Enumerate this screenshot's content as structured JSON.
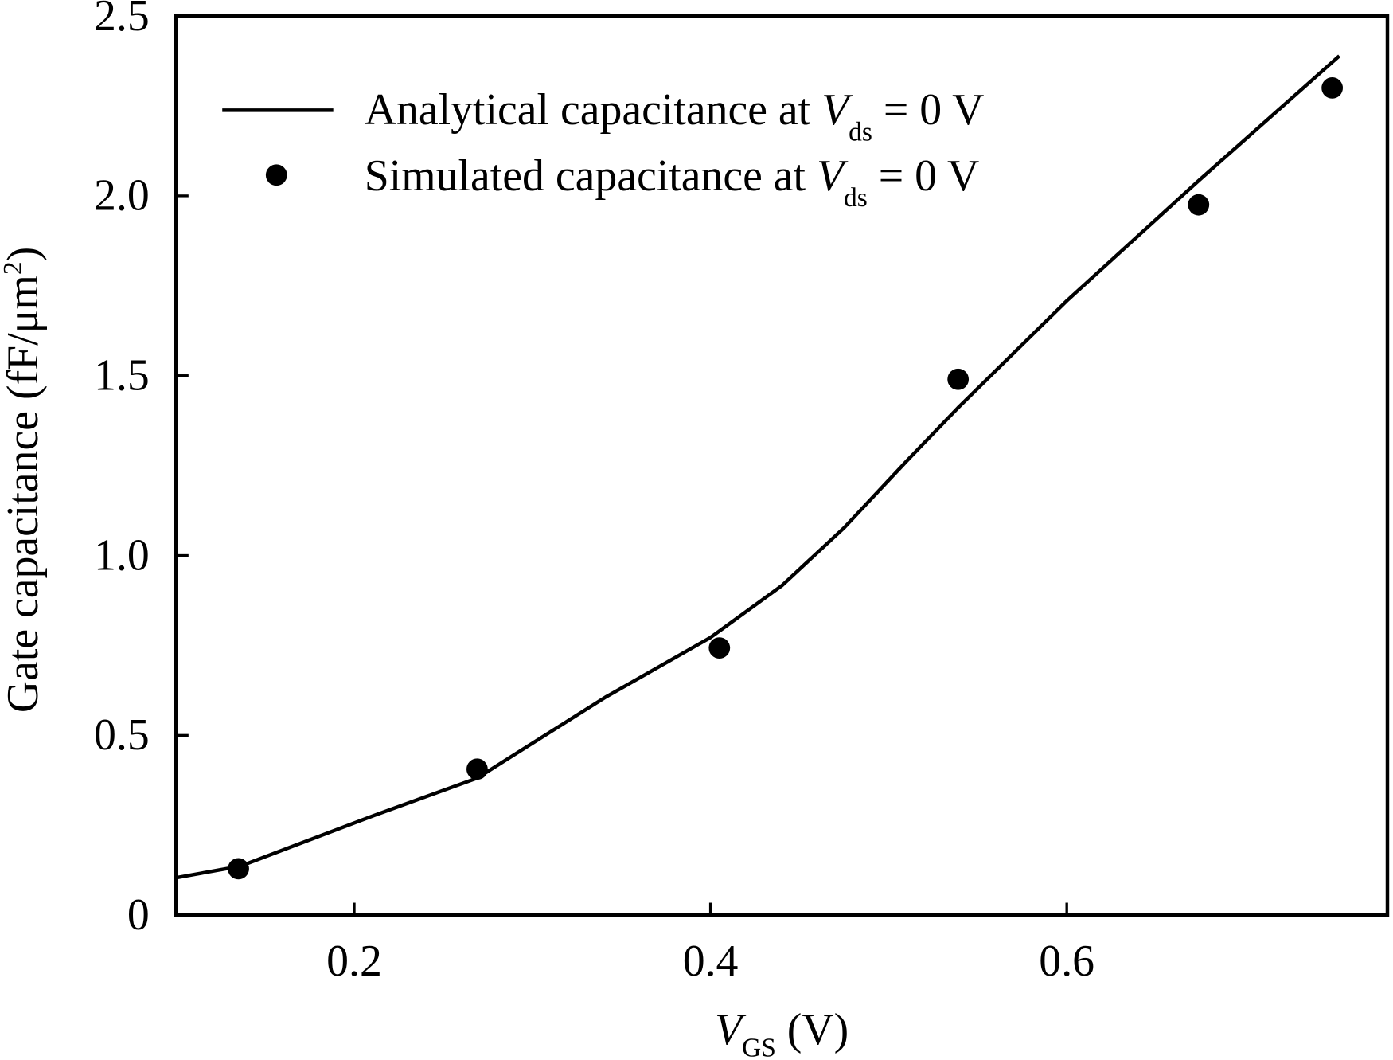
{
  "chart_data": {
    "type": "line",
    "title": "",
    "xlabel": {
      "main": "V",
      "sub": "GS",
      "unit": " (V)"
    },
    "ylabel": "Gate capacitance (fF/μm",
    "ylabel_sup": "2",
    "ylabel_close": ")",
    "xlim": [
      0.1,
      0.78
    ],
    "ylim": [
      0,
      2.5
    ],
    "xticks": [
      0.2,
      0.4,
      0.6
    ],
    "xtick_labels": [
      "0.2",
      "0.4",
      "0.6"
    ],
    "yticks": [
      0,
      0.5,
      1.0,
      1.5,
      2.0,
      2.5
    ],
    "ytick_labels": [
      "0",
      "0.5",
      "1.0",
      "1.5",
      "2.0",
      "2.5"
    ],
    "grid": false,
    "legend_position": "top-left",
    "series": [
      {
        "name": "Analytical capacitance at V_ds = 0 V",
        "legend_text": "Analytical capacitance at ",
        "legend_var": "V",
        "legend_sub": "ds",
        "legend_tail": " = 0 V",
        "style": "line",
        "color": "#000000",
        "x": [
          0.1,
          0.136,
          0.211,
          0.269,
          0.341,
          0.4,
          0.44,
          0.475,
          0.51,
          0.539,
          0.6,
          0.674,
          0.753
        ],
        "y": [
          0.104,
          0.136,
          0.277,
          0.381,
          0.606,
          0.772,
          0.916,
          1.077,
          1.262,
          1.411,
          1.708,
          2.042,
          2.389
        ]
      },
      {
        "name": "Simulated capacitance at V_ds = 0 V",
        "legend_text": "Simulated capacitance at ",
        "legend_var": "V",
        "legend_sub": "ds",
        "legend_tail": " = 0 V",
        "style": "markers",
        "color": "#000000",
        "x": [
          0.135,
          0.269,
          0.405,
          0.539,
          0.674,
          0.749
        ],
        "y": [
          0.129,
          0.406,
          0.743,
          1.49,
          1.975,
          2.3
        ]
      }
    ]
  }
}
